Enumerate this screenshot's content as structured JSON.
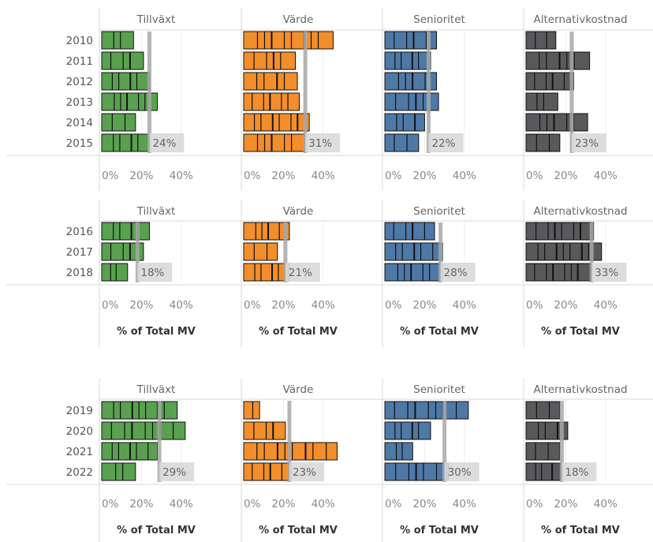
{
  "chart_data": [
    {
      "type": "bar",
      "categories": [
        "2010",
        "2011",
        "2012",
        "2013",
        "2014",
        "2015"
      ],
      "xlim": [
        0,
        50
      ],
      "x_ticks": [
        "0%",
        "20%",
        "40%"
      ],
      "xlabel": "",
      "panels": [
        {
          "name": "Tillväxt",
          "color": "#59a14f",
          "values": [
            16,
            21,
            24,
            28,
            17,
            24
          ],
          "ref_value": 24,
          "ref_label": "24%"
        },
        {
          "name": "Värde",
          "color": "#f28e2b",
          "values": [
            45,
            26,
            27,
            28,
            33,
            31
          ],
          "ref_value": 31,
          "ref_label": "31%"
        },
        {
          "name": "Senioritet",
          "color": "#4e79a7",
          "values": [
            26,
            23,
            26,
            27,
            20,
            17
          ],
          "ref_value": 22,
          "ref_label": "22%"
        },
        {
          "name": "Alternativkostnad",
          "color": "#59595c",
          "values": [
            15,
            32,
            24,
            16,
            31,
            17
          ],
          "ref_value": 23,
          "ref_label": "23%"
        }
      ]
    },
    {
      "type": "bar",
      "categories": [
        "2016",
        "2017",
        "2018"
      ],
      "xlim": [
        0,
        50
      ],
      "x_ticks": [
        "0%",
        "20%",
        "40%"
      ],
      "xlabel": "% of Total MV",
      "panels": [
        {
          "name": "Tillväxt",
          "color": "#59a14f",
          "values": [
            24,
            21,
            13
          ],
          "ref_value": 18,
          "ref_label": "18%"
        },
        {
          "name": "Värde",
          "color": "#f28e2b",
          "values": [
            23,
            17,
            23
          ],
          "ref_value": 21,
          "ref_label": "21%"
        },
        {
          "name": "Senioritet",
          "color": "#4e79a7",
          "values": [
            25,
            29,
            29
          ],
          "ref_value": 28,
          "ref_label": "28%"
        },
        {
          "name": "Alternativkostnad",
          "color": "#59595c",
          "values": [
            34,
            38,
            33
          ],
          "ref_value": 33,
          "ref_label": "33%"
        }
      ]
    },
    {
      "type": "bar",
      "categories": [
        "2019",
        "2020",
        "2021",
        "2022"
      ],
      "xlim": [
        0,
        50
      ],
      "x_ticks": [
        "0%",
        "20%",
        "40%"
      ],
      "xlabel": "% of Total MV",
      "panels": [
        {
          "name": "Tillväxt",
          "color": "#59a14f",
          "values": [
            38,
            42,
            28,
            17
          ],
          "ref_value": 29,
          "ref_label": "29%"
        },
        {
          "name": "Värde",
          "color": "#f28e2b",
          "values": [
            8,
            21,
            47,
            24
          ],
          "ref_value": 23,
          "ref_label": "23%"
        },
        {
          "name": "Senioritet",
          "color": "#4e79a7",
          "values": [
            42,
            23,
            14,
            32
          ],
          "ref_value": 30,
          "ref_label": "30%"
        },
        {
          "name": "Alternativkostnad",
          "color": "#59595c",
          "values": [
            17,
            21,
            17,
            18
          ],
          "ref_value": 18,
          "ref_label": "18%"
        }
      ]
    }
  ]
}
